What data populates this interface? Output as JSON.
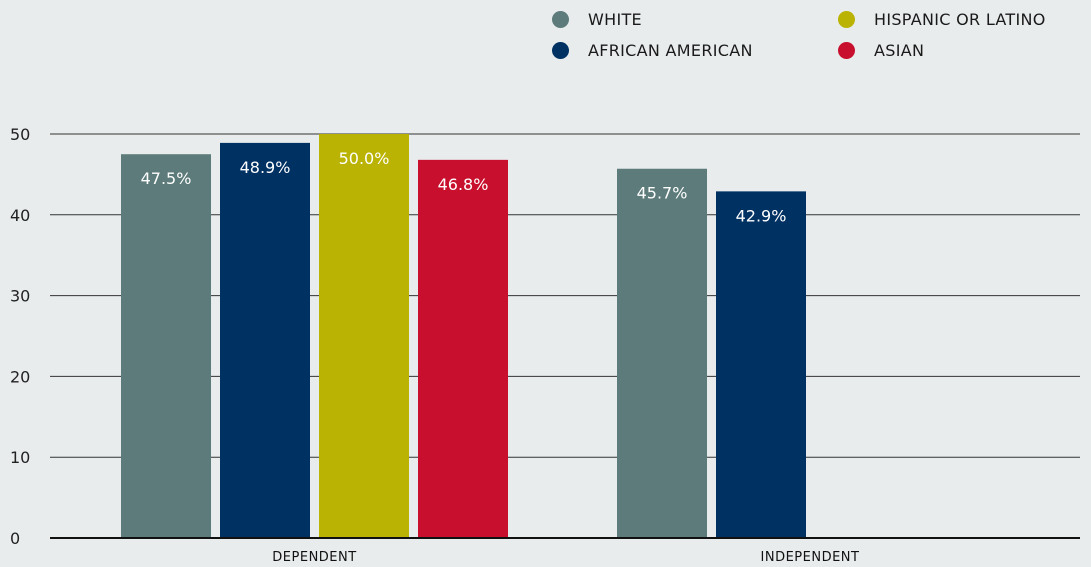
{
  "chart_data": {
    "type": "bar",
    "categories": [
      "DEPENDENT",
      "INDEPENDENT"
    ],
    "series": [
      {
        "name": "WHITE",
        "color": "#5c7b7a",
        "values": [
          47.5,
          45.7
        ],
        "labels": [
          "47.5%",
          "45.7%"
        ]
      },
      {
        "name": "AFRICAN AMERICAN",
        "color": "#003163",
        "values": [
          48.9,
          42.9
        ],
        "labels": [
          "48.9%",
          "42.9%"
        ]
      },
      {
        "name": "HISPANIC OR LATINO",
        "color": "#bab303",
        "values": [
          50.0,
          null
        ],
        "labels": [
          "50.0%",
          null
        ]
      },
      {
        "name": "ASIAN",
        "color": "#c8102e",
        "values": [
          46.8,
          null
        ],
        "labels": [
          "46.8%",
          null
        ]
      }
    ],
    "yticks": [
      "0",
      "10",
      "20",
      "30",
      "40",
      "50"
    ],
    "ylim": [
      0,
      50
    ],
    "grid": true,
    "legend_position": "top-right"
  }
}
